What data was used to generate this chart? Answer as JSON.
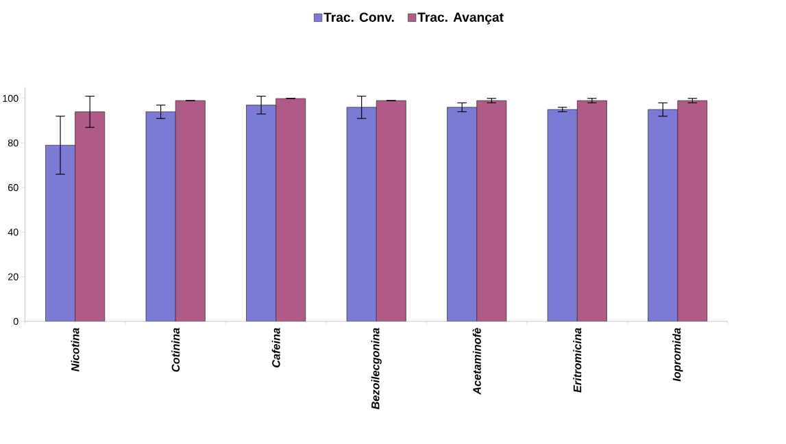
{
  "chart_data": {
    "type": "bar",
    "categories": [
      "Nicotina",
      "Cotinina",
      "Cafeina",
      "Bezoilecgonina",
      "Acetaminofè",
      "Eritromicina",
      "Iopromida"
    ],
    "series": [
      {
        "name": "Trac. Conv.",
        "color": "#7b7bd6",
        "values": [
          79,
          94,
          97,
          96,
          96,
          95,
          95
        ],
        "errors": [
          13,
          3,
          4,
          5,
          2,
          1,
          3
        ]
      },
      {
        "name": "Trac. Avançat",
        "color": "#b05a88",
        "values": [
          94,
          99,
          100,
          99,
          99,
          99,
          99
        ],
        "errors": [
          7,
          0,
          0,
          0,
          1,
          1,
          1
        ]
      }
    ],
    "ylim": [
      0,
      105
    ],
    "yticks": [
      0,
      20,
      40,
      60,
      80,
      100
    ],
    "grid": false,
    "legend": "top"
  }
}
